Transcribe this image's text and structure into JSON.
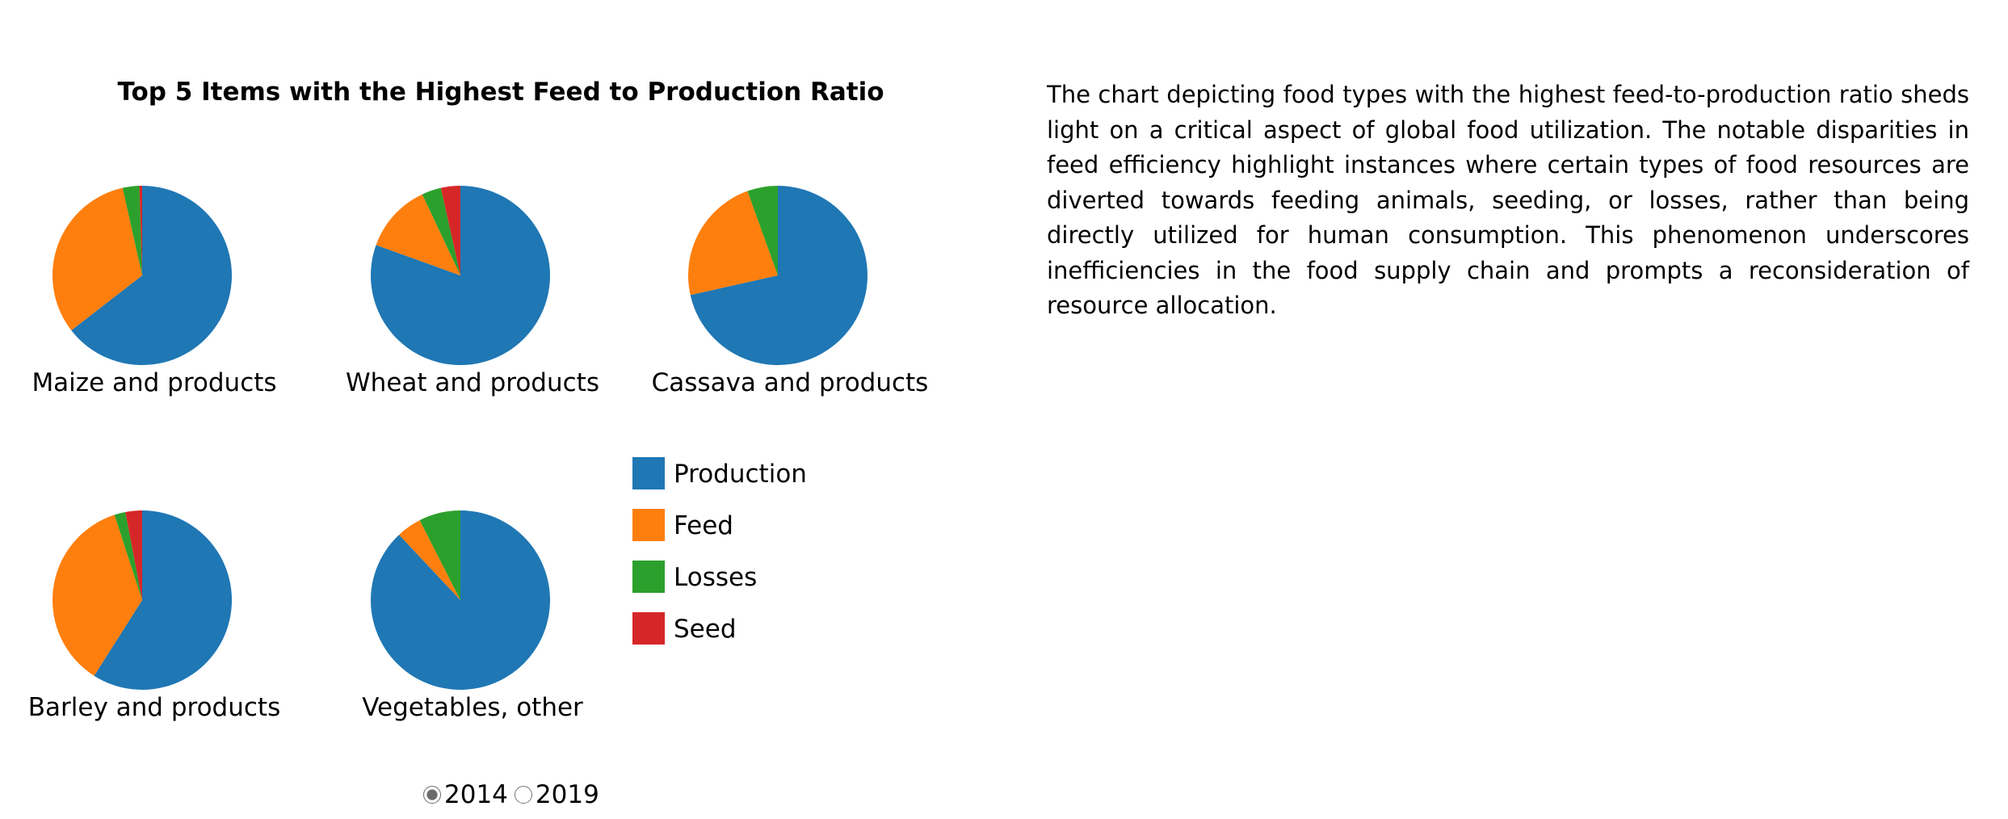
{
  "chart_data": {
    "type": "pie",
    "title": "Top 5 Items with the Highest Feed to Production Ratio",
    "series_labels": [
      "Production",
      "Feed",
      "Losses",
      "Seed"
    ],
    "colors": {
      "Production": "#1f77b4",
      "Feed": "#ff7f0e",
      "Losses": "#2ca02c",
      "Seed": "#d62728"
    },
    "selected_year": "2014",
    "pies": [
      {
        "name": "Maize and products",
        "values": {
          "Production": 64.5,
          "Feed": 32.0,
          "Losses": 3.0,
          "Seed": 0.5
        }
      },
      {
        "name": "Wheat and products",
        "values": {
          "Production": 80.5,
          "Feed": 12.5,
          "Losses": 3.5,
          "Seed": 3.5
        }
      },
      {
        "name": "Cassava and products",
        "values": {
          "Production": 71.5,
          "Feed": 23.0,
          "Losses": 5.5,
          "Seed": 0
        }
      },
      {
        "name": "Barley and products",
        "values": {
          "Production": 59.0,
          "Feed": 36.0,
          "Losses": 2.0,
          "Seed": 3.0
        }
      },
      {
        "name": "Vegetables, other",
        "values": {
          "Production": 88.0,
          "Feed": 4.5,
          "Losses": 7.5,
          "Seed": 0
        }
      }
    ],
    "legend_placement": "right of second row"
  },
  "controls": {
    "years": [
      {
        "label": "2014",
        "checked": true
      },
      {
        "label": "2019",
        "checked": false
      }
    ]
  },
  "description": "The chart depicting food types with the highest feed-to-production ratio sheds light on a critical aspect of global food utilization. The notable disparities in feed efficiency highlight instances where certain types of food resources are diverted towards feeding animals, seeding, or losses, rather than being directly utilized for human consumption. This phenomenon underscores inefficiencies in the food supply chain and prompts a reconsideration of resource allocation."
}
